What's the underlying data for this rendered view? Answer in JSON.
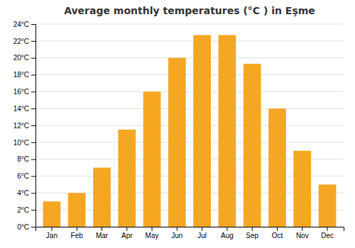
{
  "chart_data": {
    "type": "bar",
    "title": "Average monthly temperatures (°C ) in Eşme",
    "categories": [
      "Jan",
      "Feb",
      "Mar",
      "Apr",
      "May",
      "Jun",
      "Jul",
      "Aug",
      "Sep",
      "Oct",
      "Nov",
      "Dec"
    ],
    "values": [
      3.0,
      4.0,
      7.0,
      11.5,
      16.0,
      20.0,
      22.7,
      22.7,
      19.3,
      14.0,
      9.0,
      5.0
    ],
    "color": "#F5A623",
    "ylim": [
      0,
      24
    ],
    "yticks": [
      {
        "value": 0,
        "label": "0°C"
      },
      {
        "value": 2,
        "label": "2°C"
      },
      {
        "value": 4,
        "label": "4°C"
      },
      {
        "value": 6,
        "label": "6°C"
      },
      {
        "value": 8,
        "label": "8°C"
      },
      {
        "value": 10,
        "label": "10°C"
      },
      {
        "value": 12,
        "label": "12°C"
      },
      {
        "value": 14,
        "label": "14°C"
      },
      {
        "value": 16,
        "label": "16°C"
      },
      {
        "value": 18,
        "label": "18°C"
      },
      {
        "value": 20,
        "label": "20°C"
      },
      {
        "value": 22,
        "label": "22°C"
      },
      {
        "value": 24,
        "label": "24°C"
      }
    ],
    "grid": true
  }
}
